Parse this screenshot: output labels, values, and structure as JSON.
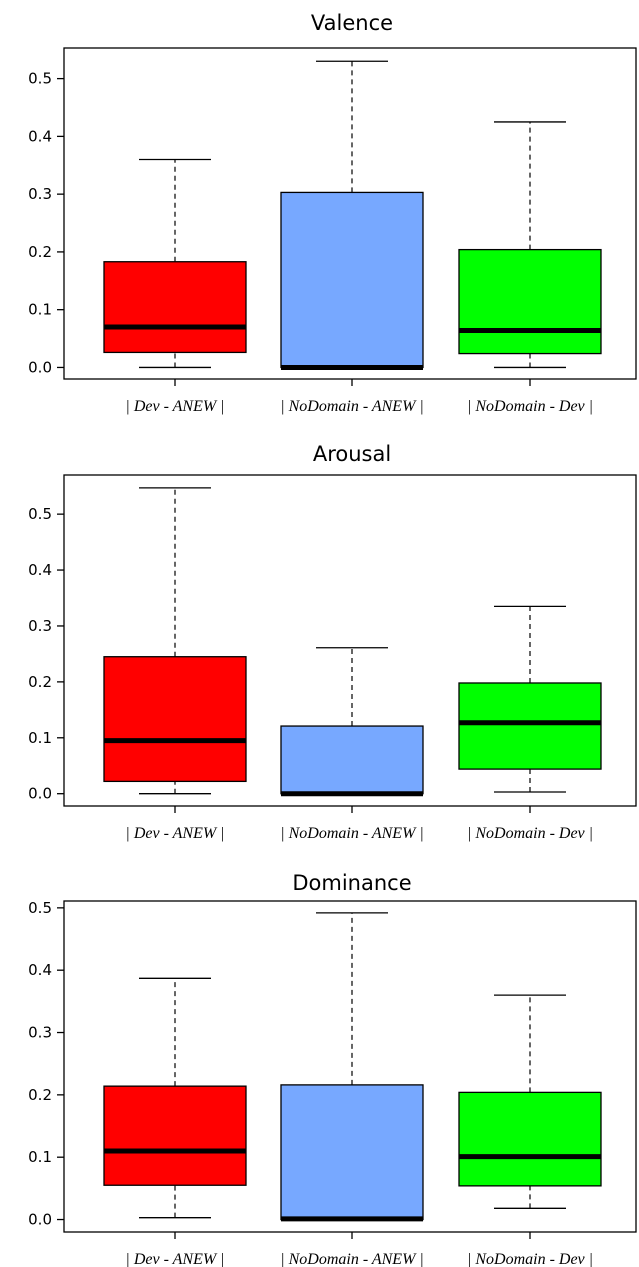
{
  "chart_data": [
    {
      "type": "boxplot",
      "title": "Valence",
      "categories": [
        "| Dev - ANEW |",
        "| NoDomain - ANEW |",
        "| NoDomain - Dev |"
      ],
      "colors": [
        "#ff0000",
        "#77a8ff",
        "#00ff00"
      ],
      "yticks": [
        "0.0",
        "0.1",
        "0.2",
        "0.3",
        "0.4",
        "0.5"
      ],
      "ylim": [
        -0.02,
        0.553
      ],
      "boxes": [
        {
          "min": 0.0,
          "q1": 0.026,
          "median": 0.07,
          "q3": 0.183,
          "max": 0.36
        },
        {
          "min": 0.0,
          "q1": 0.0,
          "median": 0.0,
          "q3": 0.303,
          "max": 0.53
        },
        {
          "min": 0.0,
          "q1": 0.024,
          "median": 0.064,
          "q3": 0.204,
          "max": 0.425
        }
      ]
    },
    {
      "type": "boxplot",
      "title": "Arousal",
      "categories": [
        "| Dev - ANEW |",
        "| NoDomain - ANEW |",
        "| NoDomain - Dev |"
      ],
      "colors": [
        "#ff0000",
        "#77a8ff",
        "#00ff00"
      ],
      "yticks": [
        "0.0",
        "0.1",
        "0.2",
        "0.3",
        "0.4",
        "0.5"
      ],
      "ylim": [
        -0.022,
        0.57
      ],
      "boxes": [
        {
          "min": 0.0,
          "q1": 0.022,
          "median": 0.095,
          "q3": 0.245,
          "max": 0.547
        },
        {
          "min": 0.0,
          "q1": 0.0,
          "median": 0.0,
          "q3": 0.121,
          "max": 0.261
        },
        {
          "min": 0.003,
          "q1": 0.044,
          "median": 0.127,
          "q3": 0.198,
          "max": 0.335
        }
      ]
    },
    {
      "type": "boxplot",
      "title": "Dominance",
      "categories": [
        "| Dev - ANEW |",
        "| NoDomain - ANEW |",
        "| NoDomain - Dev |"
      ],
      "colors": [
        "#ff0000",
        "#77a8ff",
        "#00ff00"
      ],
      "yticks": [
        "0.0",
        "0.1",
        "0.2",
        "0.3",
        "0.4",
        "0.5"
      ],
      "ylim": [
        -0.02,
        0.511
      ],
      "boxes": [
        {
          "min": 0.003,
          "q1": 0.055,
          "median": 0.11,
          "q3": 0.214,
          "max": 0.387
        },
        {
          "min": 0.0,
          "q1": 0.0,
          "median": 0.001,
          "q3": 0.216,
          "max": 0.492
        },
        {
          "min": 0.018,
          "q1": 0.054,
          "median": 0.101,
          "q3": 0.204,
          "max": 0.36
        }
      ]
    }
  ]
}
